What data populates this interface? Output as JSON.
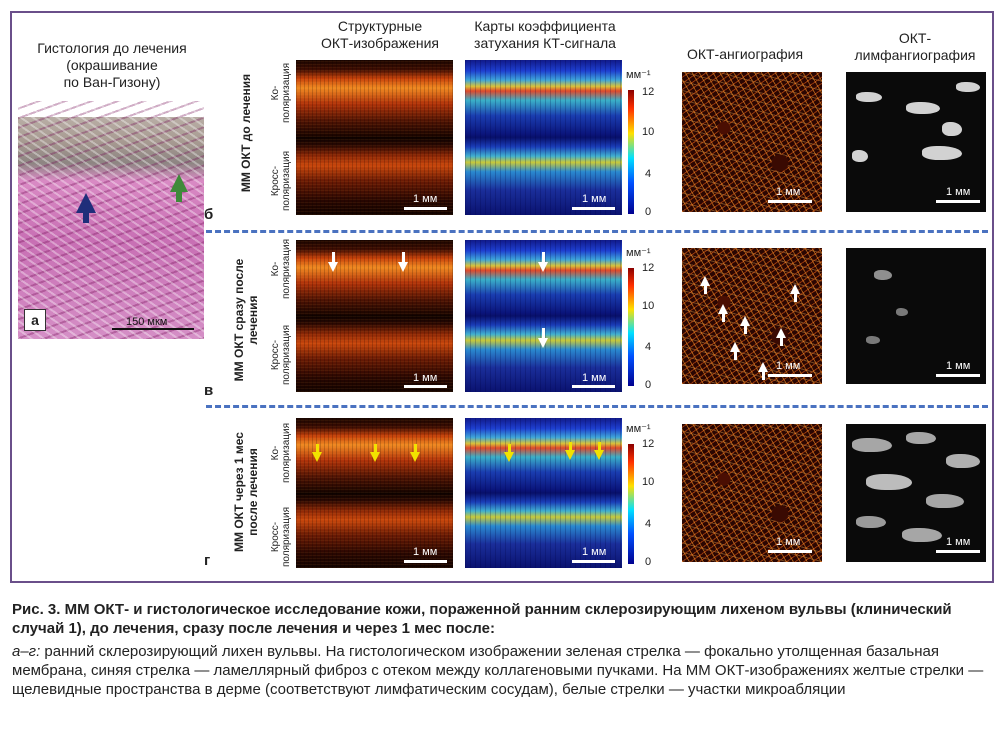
{
  "histology": {
    "title": "Гистология до лечения\n(окрашивание\nпо Ван-Гизону)",
    "label": "а",
    "scale": "150 мкм"
  },
  "columns": {
    "structural": "Структурные\nОКТ-изображения",
    "attenuation": "Карты коэффициента\nзатухания КТ-сигнала",
    "angio": "ОКТ-ангиография",
    "lymph": "ОКТ-\nлимфангиография"
  },
  "rows": [
    {
      "label": "ММ ОКТ до лечения",
      "letter": "б"
    },
    {
      "label": "ММ ОКТ сразу после\nлечения",
      "letter": "в"
    },
    {
      "label": "ММ ОКТ через 1 мес\nпосле лечения",
      "letter": "г"
    }
  ],
  "polarization": {
    "co": "Ко-\nполяризация",
    "cross": "Кросс-\nполяризация"
  },
  "scale_label": "1 мм",
  "colorbar": {
    "unit": "мм⁻¹",
    "ticks": [
      "12",
      "10",
      "4",
      "0"
    ]
  },
  "caption": {
    "title": "Рис. 3. ММ ОКТ- и гистологическое исследование кожи, пораженной ранним склерозирующим лихеном вульвы (клинический случай 1), до лечения, сразу после лечения и через 1 мес после:",
    "panels": "а–г:",
    "body": " ранний склерозирующий лихен вульвы. На гистологическом изображении зеленая стрелка — фокально утолщенная базальная мембрана, синяя стрелка — ламеллярный фиброз с отеком между коллагеновыми пучками. На ММ ОКТ-изображениях желтые стрелки — щелевидные пространства в дерме (соответствуют лимфатическим сосудам), белые стрелки — участки микроабляции"
  }
}
